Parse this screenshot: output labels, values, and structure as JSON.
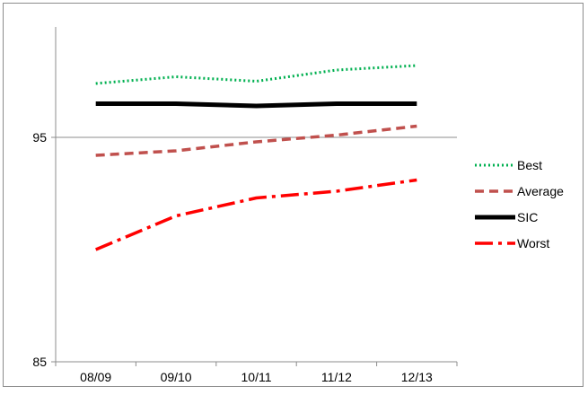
{
  "chart_data": {
    "type": "line",
    "categories": [
      "08/09",
      "09/10",
      "10/11",
      "11/12",
      "12/13"
    ],
    "ylim": [
      85,
      95
    ],
    "yticks": [
      85,
      95
    ],
    "grid": "horizontal line at 95",
    "legend_position": "right",
    "series": [
      {
        "name": "Best",
        "values": [
          97.4,
          97.7,
          97.5,
          98.0,
          98.2
        ],
        "color": "#00b050",
        "dash": "dotted"
      },
      {
        "name": "Average",
        "values": [
          94.2,
          94.4,
          94.8,
          95.1,
          95.5
        ],
        "color": "#c0504d",
        "dash": "dashed"
      },
      {
        "name": "SIC",
        "values": [
          96.5,
          96.5,
          96.4,
          96.5,
          96.5
        ],
        "color": "#000000",
        "dash": "solid"
      },
      {
        "name": "Worst",
        "values": [
          90.0,
          91.5,
          92.3,
          92.6,
          93.1
        ],
        "color": "#ff0000",
        "dash": "dash-dot"
      }
    ]
  }
}
